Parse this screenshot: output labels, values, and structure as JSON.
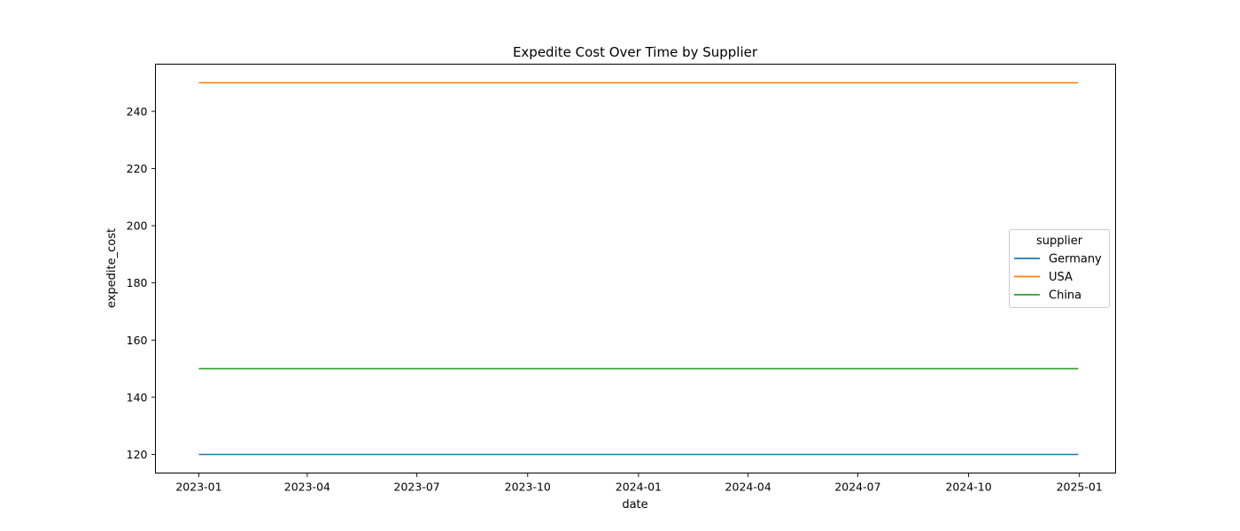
{
  "chart_data": {
    "type": "line",
    "title": "Expedite Cost Over Time by Supplier",
    "xlabel": "date",
    "ylabel": "expedite_cost",
    "x_ticks": [
      "2023-01",
      "2023-04",
      "2023-07",
      "2023-10",
      "2024-01",
      "2024-04",
      "2024-07",
      "2024-10",
      "2025-01"
    ],
    "y_ticks": [
      120,
      140,
      160,
      180,
      200,
      220,
      240
    ],
    "xlim": [
      "2022-11-26",
      "2025-01-31"
    ],
    "ylim": [
      113.5,
      256.5
    ],
    "grid": false,
    "legend": {
      "title": "supplier",
      "placement": "center-right"
    },
    "series": [
      {
        "name": "Germany",
        "color": "#1f77b4",
        "x": [
          "2023-01-01",
          "2024-12-31"
        ],
        "values": [
          120,
          120
        ]
      },
      {
        "name": "USA",
        "color": "#ff7f0e",
        "x": [
          "2023-01-01",
          "2024-12-31"
        ],
        "values": [
          250,
          250
        ]
      },
      {
        "name": "China",
        "color": "#2ca02c",
        "x": [
          "2023-01-01",
          "2024-12-31"
        ],
        "values": [
          150,
          150
        ]
      }
    ]
  }
}
